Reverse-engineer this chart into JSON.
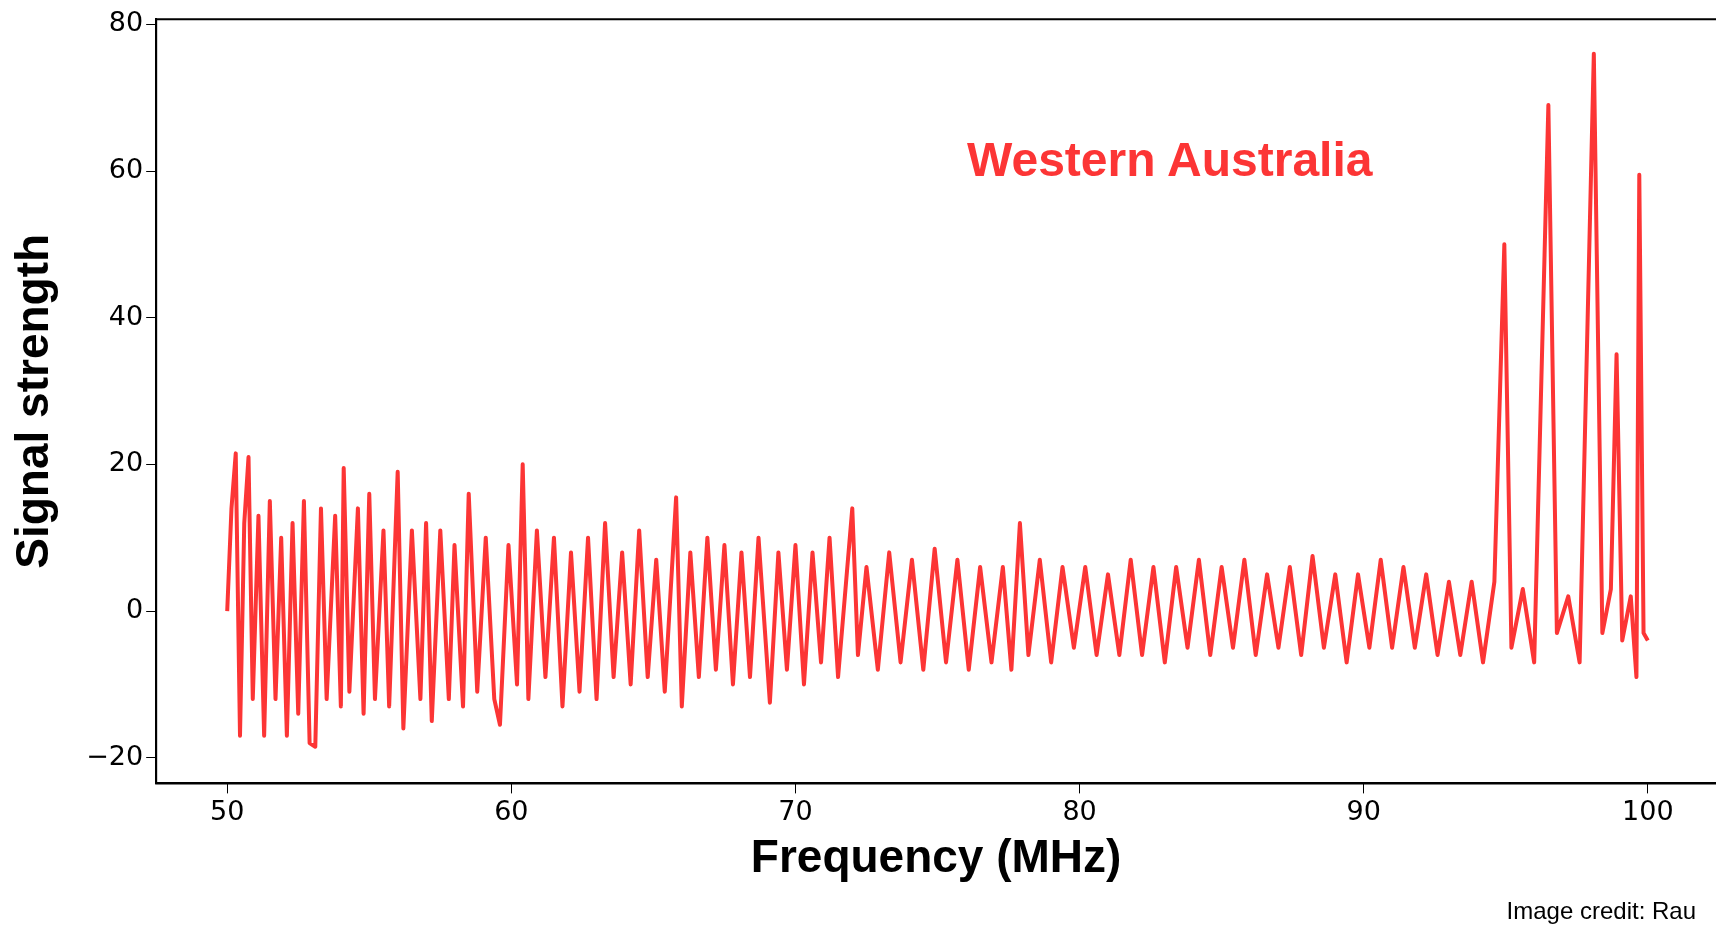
{
  "chart_data": {
    "type": "line",
    "xlabel": "Frequency (MHz)",
    "ylabel": "Signal strength",
    "annotations": [
      "Western Australia",
      "Image credit: Rau"
    ],
    "xlim": [
      47.5,
      102.4
    ],
    "ylim": [
      -23.5,
      80.7
    ],
    "xticks": [
      50,
      60,
      70,
      80,
      90,
      100
    ],
    "yticks": [
      -20,
      0,
      20,
      40,
      60,
      80
    ],
    "grid": false,
    "legend": false,
    "marker": "none",
    "line_style": "solid",
    "x": [
      50.0,
      50.15,
      50.3,
      50.45,
      50.6,
      50.75,
      50.9,
      51.1,
      51.3,
      51.5,
      51.7,
      51.9,
      52.1,
      52.3,
      52.5,
      52.7,
      52.9,
      53.1,
      53.3,
      53.5,
      53.8,
      54.0,
      54.1,
      54.3,
      54.6,
      54.8,
      55.0,
      55.2,
      55.5,
      55.7,
      56.0,
      56.2,
      56.5,
      56.8,
      57.0,
      57.2,
      57.5,
      57.8,
      58.0,
      58.3,
      58.5,
      58.8,
      59.1,
      59.4,
      59.6,
      59.9,
      60.2,
      60.4,
      60.6,
      60.9,
      61.2,
      61.5,
      61.8,
      62.1,
      62.4,
      62.7,
      63.0,
      63.3,
      63.6,
      63.9,
      64.2,
      64.5,
      64.8,
      65.1,
      65.4,
      65.8,
      66.0,
      66.3,
      66.6,
      66.9,
      67.2,
      67.5,
      67.8,
      68.1,
      68.4,
      68.7,
      69.1,
      69.4,
      69.7,
      70.0,
      70.3,
      70.6,
      70.9,
      71.2,
      71.5,
      72.0,
      72.2,
      72.5,
      72.9,
      73.3,
      73.7,
      74.1,
      74.5,
      74.9,
      75.3,
      75.7,
      76.1,
      76.5,
      76.9,
      77.3,
      77.6,
      77.9,
      78.2,
      78.6,
      79.0,
      79.4,
      79.8,
      80.2,
      80.6,
      81.0,
      81.4,
      81.8,
      82.2,
      82.6,
      83.0,
      83.4,
      83.8,
      84.2,
      84.6,
      85.0,
      85.4,
      85.8,
      86.2,
      86.6,
      87.0,
      87.4,
      87.8,
      88.2,
      88.6,
      89.0,
      89.4,
      89.8,
      90.2,
      90.6,
      91.0,
      91.4,
      91.8,
      92.2,
      92.6,
      93.0,
      93.4,
      93.8,
      94.2,
      94.6,
      94.95,
      95.2,
      95.6,
      96.0,
      96.5,
      96.8,
      97.2,
      97.6,
      98.1,
      98.4,
      98.7,
      98.9,
      99.1,
      99.4,
      99.6,
      99.7,
      99.85,
      100.0
    ],
    "series": [
      {
        "color": "#fc3535",
        "values": [
          0,
          14,
          21.5,
          -17,
          12,
          21,
          -12,
          13,
          -17,
          15,
          -12,
          10,
          -17,
          12,
          -14,
          15,
          -18,
          -18.5,
          14,
          -12,
          13,
          -13,
          19.5,
          -11,
          14,
          -14,
          16,
          -12,
          11,
          -13,
          19,
          -16,
          11,
          -12,
          12,
          -15,
          11,
          -12,
          9,
          -13,
          16,
          -11,
          10,
          -12,
          -15.5,
          9,
          -10,
          20,
          -12,
          11,
          -9,
          10,
          -13,
          8,
          -11,
          10,
          -12,
          12,
          -9,
          8,
          -10,
          11,
          -9,
          7,
          -11,
          15.5,
          -13,
          8,
          -9,
          10,
          -8,
          9,
          -10,
          8,
          -9,
          10,
          -12.5,
          8,
          -8,
          9,
          -10,
          8,
          -7,
          10,
          -9,
          14,
          -6,
          6,
          -8,
          8,
          -7,
          7,
          -8,
          8.5,
          -7,
          7,
          -8,
          6,
          -7,
          6,
          -8,
          12,
          -6,
          7,
          -7,
          6,
          -5,
          6,
          -6,
          5,
          -6,
          7,
          -6,
          6,
          -7,
          6,
          -5,
          7,
          -6,
          6,
          -5,
          7,
          -6,
          5,
          -5,
          6,
          -6,
          7.5,
          -5,
          5,
          -7,
          5,
          -5,
          7,
          -5,
          6,
          -5,
          5,
          -6,
          4,
          -6,
          4,
          -7,
          4,
          50,
          -5,
          3,
          -7,
          69,
          -3,
          2,
          -7,
          76,
          -3,
          3,
          35,
          -4,
          2,
          -9,
          59.5,
          -3,
          -4
        ]
      }
    ]
  }
}
